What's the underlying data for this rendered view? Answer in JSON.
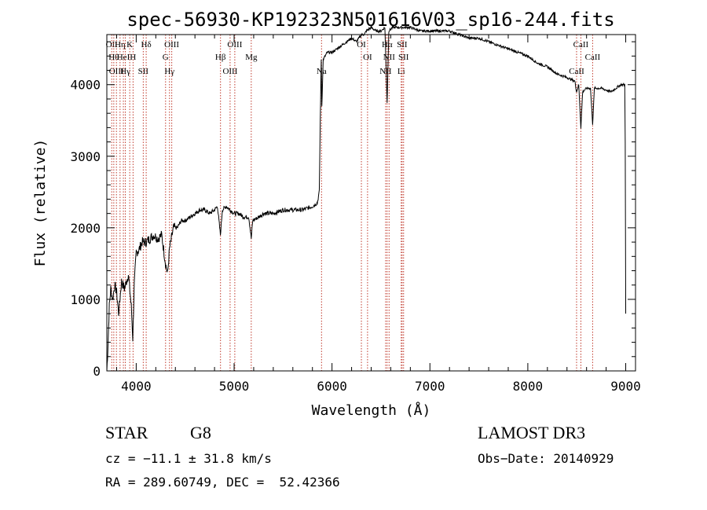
{
  "chart_data": {
    "type": "line",
    "title": "spec-56930-KP192323N501616V03_sp16-244.fits",
    "xlabel": "Wavelength (Å)",
    "ylabel": "Flux (relative)",
    "xlim": [
      3700,
      9100
    ],
    "ylim": [
      0,
      4700
    ],
    "x_ticks": [
      4000,
      5000,
      6000,
      7000,
      8000,
      9000
    ],
    "y_ticks": [
      0,
      1000,
      2000,
      3000,
      4000
    ],
    "grid": false,
    "series": [
      {
        "points": [
          [
            3700,
            0
          ],
          [
            3710,
            300
          ],
          [
            3725,
            900
          ],
          [
            3740,
            1150
          ],
          [
            3760,
            1000
          ],
          [
            3780,
            1200
          ],
          [
            3800,
            1100
          ],
          [
            3820,
            800
          ],
          [
            3850,
            1250
          ],
          [
            3880,
            1150
          ],
          [
            3920,
            1350
          ],
          [
            3950,
            900
          ],
          [
            3965,
            450
          ],
          [
            3980,
            1200
          ],
          [
            4000,
            1650
          ],
          [
            4030,
            1700
          ],
          [
            4060,
            1800
          ],
          [
            4100,
            1800
          ],
          [
            4140,
            1850
          ],
          [
            4180,
            1900
          ],
          [
            4220,
            1850
          ],
          [
            4260,
            1900
          ],
          [
            4300,
            1500
          ],
          [
            4320,
            1350
          ],
          [
            4340,
            1700
          ],
          [
            4380,
            2000
          ],
          [
            4420,
            2000
          ],
          [
            4460,
            2100
          ],
          [
            4500,
            2100
          ],
          [
            4550,
            2150
          ],
          [
            4600,
            2200
          ],
          [
            4650,
            2250
          ],
          [
            4700,
            2250
          ],
          [
            4750,
            2200
          ],
          [
            4800,
            2250
          ],
          [
            4830,
            2300
          ],
          [
            4860,
            1900
          ],
          [
            4880,
            2250
          ],
          [
            4920,
            2300
          ],
          [
            4960,
            2250
          ],
          [
            5000,
            2200
          ],
          [
            5050,
            2200
          ],
          [
            5100,
            2150
          ],
          [
            5150,
            2150
          ],
          [
            5175,
            1850
          ],
          [
            5190,
            2100
          ],
          [
            5250,
            2150
          ],
          [
            5300,
            2200
          ],
          [
            5400,
            2200
          ],
          [
            5500,
            2250
          ],
          [
            5600,
            2250
          ],
          [
            5700,
            2250
          ],
          [
            5800,
            2300
          ],
          [
            5850,
            2350
          ],
          [
            5870,
            2500
          ],
          [
            5880,
            3500
          ],
          [
            5890,
            4350
          ],
          [
            5896,
            3700
          ],
          [
            5910,
            4350
          ],
          [
            5950,
            4450
          ],
          [
            6000,
            4450
          ],
          [
            6050,
            4500
          ],
          [
            6100,
            4550
          ],
          [
            6150,
            4600
          ],
          [
            6200,
            4650
          ],
          [
            6250,
            4600
          ],
          [
            6300,
            4700
          ],
          [
            6330,
            4700
          ],
          [
            6350,
            4750
          ],
          [
            6400,
            4800
          ],
          [
            6450,
            4750
          ],
          [
            6500,
            4750
          ],
          [
            6540,
            4800
          ],
          [
            6563,
            3750
          ],
          [
            6580,
            4750
          ],
          [
            6620,
            4800
          ],
          [
            6700,
            4800
          ],
          [
            6800,
            4800
          ],
          [
            6900,
            4750
          ],
          [
            7000,
            4750
          ],
          [
            7100,
            4750
          ],
          [
            7200,
            4750
          ],
          [
            7300,
            4700
          ],
          [
            7400,
            4650
          ],
          [
            7500,
            4650
          ],
          [
            7600,
            4600
          ],
          [
            7700,
            4550
          ],
          [
            7800,
            4500
          ],
          [
            7900,
            4450
          ],
          [
            8000,
            4400
          ],
          [
            8100,
            4300
          ],
          [
            8200,
            4250
          ],
          [
            8300,
            4150
          ],
          [
            8400,
            4100
          ],
          [
            8480,
            4050
          ],
          [
            8498,
            3900
          ],
          [
            8520,
            4000
          ],
          [
            8542,
            3400
          ],
          [
            8560,
            3900
          ],
          [
            8600,
            3950
          ],
          [
            8640,
            3950
          ],
          [
            8662,
            3450
          ],
          [
            8680,
            3950
          ],
          [
            8750,
            3950
          ],
          [
            8850,
            3900
          ],
          [
            8950,
            4000
          ],
          [
            8990,
            4000
          ],
          [
            8995,
            3200
          ],
          [
            9000,
            800
          ]
        ]
      }
    ],
    "lines": [
      {
        "x": 3750,
        "label": "OII"
      },
      {
        "x": 3771,
        "label": "Hθ"
      },
      {
        "x": 3798,
        "label": "OIII"
      },
      {
        "x": 3835,
        "label": "Hη"
      },
      {
        "x": 3869,
        "label": "HeI"
      },
      {
        "x": 3889,
        "label": "Hγ"
      },
      {
        "x": 3934,
        "label": "K"
      },
      {
        "x": 3968,
        "label": "H"
      },
      {
        "x": 4072,
        "label": "SII"
      },
      {
        "x": 4102,
        "label": "Hδ"
      },
      {
        "x": 4300,
        "label": "G"
      },
      {
        "x": 4340,
        "label": "Hγ"
      },
      {
        "x": 4363,
        "label": "OIII"
      },
      {
        "x": 4861,
        "label": "Hβ"
      },
      {
        "x": 4959,
        "label": "OIII"
      },
      {
        "x": 5007,
        "label": "OIII"
      },
      {
        "x": 5175,
        "label": "Mg"
      },
      {
        "x": 5893,
        "label": "Na"
      },
      {
        "x": 6300,
        "label": "OI"
      },
      {
        "x": 6363,
        "label": "OI"
      },
      {
        "x": 6548,
        "label": "NII"
      },
      {
        "x": 6563,
        "label": "Hα"
      },
      {
        "x": 6583,
        "label": "NII"
      },
      {
        "x": 6707,
        "label": "Li"
      },
      {
        "x": 6716,
        "label": "SII"
      },
      {
        "x": 6731,
        "label": "SII"
      },
      {
        "x": 8498,
        "label": "CaII"
      },
      {
        "x": 8542,
        "label": "CaII"
      },
      {
        "x": 8662,
        "label": "CaII"
      }
    ]
  },
  "info": {
    "object_class": "STAR",
    "subclass": "G8",
    "survey": "LAMOST DR3",
    "cz": "cz = −11.1 ± 31.8 km/s",
    "obs_date": "Obs−Date: 20140929",
    "coords": "RA = 289.60749, DEC =  52.42366"
  }
}
